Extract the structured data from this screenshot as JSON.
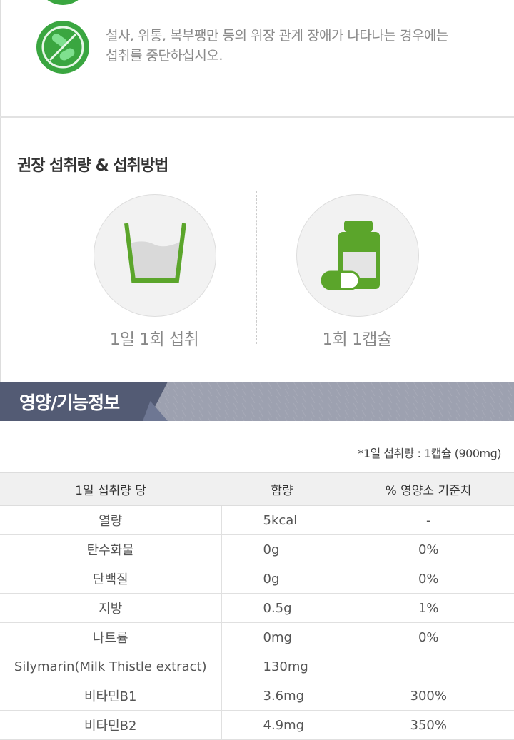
{
  "warning": {
    "text_line1": "설사, 위통, 복부팽만 등의 위장 관계 장애가 나타나는 경우에는",
    "text_line2": "섭취를 중단하십시오.",
    "icon": "no-pill-icon",
    "accent": "#3aa640"
  },
  "intake": {
    "title": "권장 섭취량 & 섭취방법",
    "items": [
      {
        "label": "1일 1회 섭취",
        "icon": "water-cup-icon"
      },
      {
        "label": "1회 1캡슐",
        "icon": "capsule-bottle-icon"
      }
    ],
    "accent": "#5ba52b"
  },
  "nutrition": {
    "title": "영양/기능정보",
    "note": "*1일 섭취량 : 1캡슐 (900mg)",
    "headers": [
      "1일 섭취량 당",
      "함량",
      "% 영양소 기준치"
    ],
    "rows": [
      [
        "열량",
        "5kcal",
        "-"
      ],
      [
        "탄수화물",
        "0g",
        "0%"
      ],
      [
        "단백질",
        "0g",
        "0%"
      ],
      [
        "지방",
        "0.5g",
        "1%"
      ],
      [
        "나트륨",
        "0mg",
        "0%"
      ],
      [
        "Silymarin(Milk Thistle extract)",
        "130mg",
        ""
      ],
      [
        "비타민B1",
        "3.6mg",
        "300%"
      ],
      [
        "비타민B2",
        "4.9mg",
        "350%"
      ]
    ]
  }
}
